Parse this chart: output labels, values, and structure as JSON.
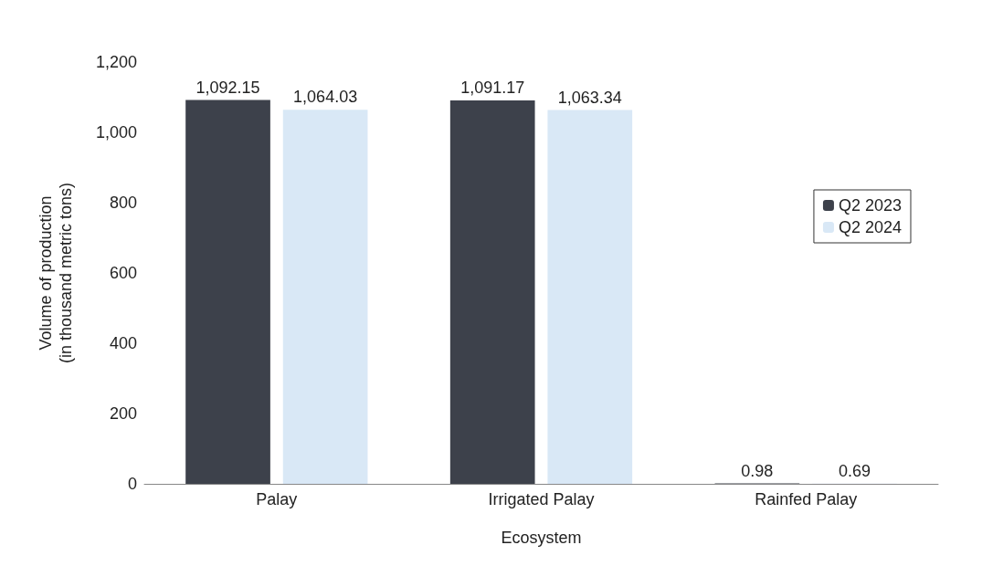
{
  "chart_data": {
    "type": "bar",
    "xlabel": "Ecosystem",
    "ylabel": "Volume of production\n(in thousand metric tons)",
    "categories": [
      "Palay",
      "Irrigated Palay",
      "Rainfed Palay"
    ],
    "series": [
      {
        "name": "Q2 2023",
        "color": "#3d414b",
        "values": [
          1092.15,
          1091.17,
          0.98
        ],
        "value_labels": [
          "1,092.15",
          "1,091.17",
          "0.98"
        ]
      },
      {
        "name": "Q2 2024",
        "color": "#d9e8f6",
        "values": [
          1064.03,
          1063.34,
          0.69
        ],
        "value_labels": [
          "1,064.03",
          "1,063.34",
          "0.69"
        ]
      }
    ],
    "ylim": [
      0,
      1200
    ],
    "yticks": [
      0,
      200,
      400,
      600,
      800,
      {
        "value": 1000,
        "label": "1,000"
      },
      {
        "value": 1200,
        "label": "1,200"
      }
    ],
    "grid": false,
    "legend": "right"
  }
}
